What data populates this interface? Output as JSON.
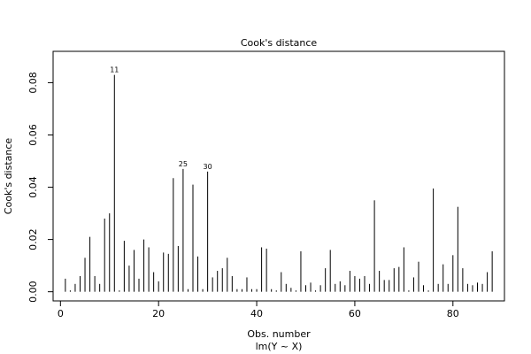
{
  "chart_data": {
    "type": "bar",
    "subtype": "spike",
    "title": "Cook's distance",
    "xlabel": "Obs. number",
    "xlabel_sub": "lm(Y ~ X)",
    "ylabel": "Cook's distance",
    "xlim": [
      -1.5,
      90.5
    ],
    "ylim": [
      -0.0035,
      0.092
    ],
    "x_ticks": [
      0,
      20,
      40,
      60,
      80
    ],
    "x_tick_labels": [
      "0",
      "20",
      "40",
      "60",
      "80"
    ],
    "y_ticks": [
      0.0,
      0.02,
      0.04,
      0.06,
      0.08
    ],
    "y_tick_labels": [
      "0.00",
      "0.02",
      "0.04",
      "0.06",
      "0.08"
    ],
    "grid": false,
    "x": [
      1,
      2,
      3,
      4,
      5,
      6,
      7,
      8,
      9,
      10,
      11,
      12,
      13,
      14,
      15,
      16,
      17,
      18,
      19,
      20,
      21,
      22,
      23,
      24,
      25,
      26,
      27,
      28,
      29,
      30,
      31,
      32,
      33,
      34,
      35,
      36,
      37,
      38,
      39,
      40,
      41,
      42,
      43,
      44,
      45,
      46,
      47,
      48,
      49,
      50,
      51,
      52,
      53,
      54,
      55,
      56,
      57,
      58,
      59,
      60,
      61,
      62,
      63,
      64,
      65,
      66,
      67,
      68,
      69,
      70,
      71,
      72,
      73,
      74,
      75,
      76,
      77,
      78,
      79,
      80,
      81,
      82,
      83,
      84,
      85,
      86,
      87,
      88
    ],
    "values": [
      0.005,
      0.0005,
      0.003,
      0.006,
      0.013,
      0.021,
      0.006,
      0.003,
      0.028,
      0.03,
      0.083,
      0.0005,
      0.0195,
      0.01,
      0.016,
      0.005,
      0.02,
      0.017,
      0.0075,
      0.004,
      0.015,
      0.0145,
      0.0435,
      0.0175,
      0.047,
      0.001,
      0.041,
      0.0135,
      0.001,
      0.046,
      0.0055,
      0.008,
      0.009,
      0.013,
      0.006,
      0.001,
      0.001,
      0.0055,
      0.001,
      0.001,
      0.017,
      0.0165,
      0.001,
      0.0005,
      0.0075,
      0.003,
      0.0015,
      0.0005,
      0.0155,
      0.0025,
      0.0035,
      0.0005,
      0.0025,
      0.009,
      0.016,
      0.003,
      0.004,
      0.0025,
      0.008,
      0.006,
      0.005,
      0.006,
      0.003,
      0.035,
      0.008,
      0.0045,
      0.0045,
      0.009,
      0.0095,
      0.017,
      0.0005,
      0.0055,
      0.0115,
      0.0025,
      0.0005,
      0.0395,
      0.003,
      0.0105,
      0.003,
      0.014,
      0.0325,
      0.009,
      0.003,
      0.0025,
      0.0035,
      0.003,
      0.0075,
      0.0155
    ],
    "annotations": [
      {
        "x": 11,
        "label": "11"
      },
      {
        "x": 25,
        "label": "25"
      },
      {
        "x": 30,
        "label": "30"
      }
    ]
  }
}
